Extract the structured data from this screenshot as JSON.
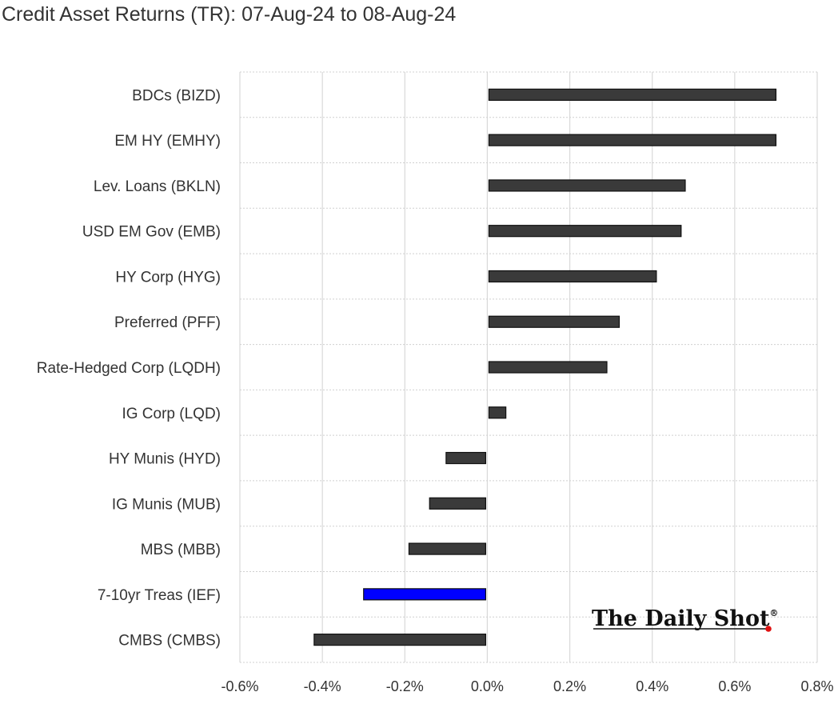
{
  "chart_data": {
    "type": "bar",
    "orientation": "horizontal",
    "title": "Credit Asset Returns (TR): 07-Aug-24 to 08-Aug-24",
    "categories": [
      "BDCs (BIZD)",
      "EM HY (EMHY)",
      "Lev. Loans (BKLN)",
      "USD EM Gov (EMB)",
      "HY Corp (HYG)",
      "Preferred (PFF)",
      "Rate-Hedged Corp (LQDH)",
      "IG Corp (LQD)",
      "HY Munis (HYD)",
      "IG Munis (MUB)",
      "MBS (MBB)",
      "7-10yr Treas (IEF)",
      "CMBS (CMBS)"
    ],
    "values": [
      0.7,
      0.7,
      0.48,
      0.47,
      0.41,
      0.32,
      0.29,
      0.045,
      -0.1,
      -0.14,
      -0.19,
      -0.3,
      -0.42
    ],
    "bar_colors": [
      "#3a3a3a",
      "#3a3a3a",
      "#3a3a3a",
      "#3a3a3a",
      "#3a3a3a",
      "#3a3a3a",
      "#3a3a3a",
      "#3a3a3a",
      "#3a3a3a",
      "#3a3a3a",
      "#3a3a3a",
      "#0000ff",
      "#3a3a3a"
    ],
    "xlim": [
      -0.6,
      0.8
    ],
    "xticks": [
      -0.6,
      -0.4,
      -0.2,
      0.0,
      0.2,
      0.4,
      0.6,
      0.8
    ],
    "xtick_labels": [
      "-0.6%",
      "-0.4%",
      "-0.2%",
      "0.0%",
      "0.2%",
      "0.4%",
      "0.6%",
      "0.8%"
    ],
    "unit": "%",
    "grid": true
  },
  "watermark": {
    "text": "The Daily Shot",
    "mark": "®"
  }
}
